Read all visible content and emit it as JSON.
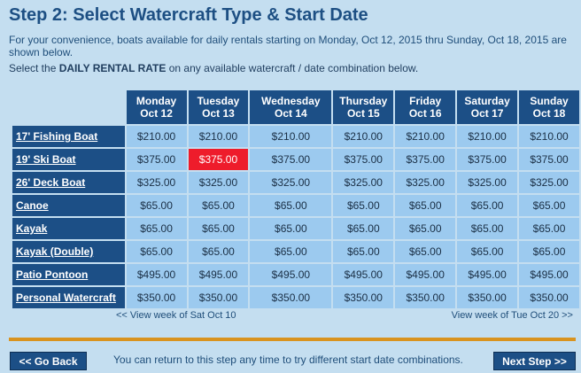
{
  "page": {
    "title": "Step 2: Select Watercraft Type & Start Date",
    "intro": "For your convenience, boats available for daily rentals starting on Monday, Oct 12, 2015 thru Sunday, Oct 18, 2015 are shown below.",
    "instruction_prefix": "Select the ",
    "instruction_bold": "DAILY RENTAL RATE",
    "instruction_suffix": " on any available watercraft / date combination below."
  },
  "table": {
    "days": [
      {
        "day": "Monday",
        "date": "Oct 12"
      },
      {
        "day": "Tuesday",
        "date": "Oct 13"
      },
      {
        "day": "Wednesday",
        "date": "Oct 14"
      },
      {
        "day": "Thursday",
        "date": "Oct 15"
      },
      {
        "day": "Friday",
        "date": "Oct 16"
      },
      {
        "day": "Saturday",
        "date": "Oct 17"
      },
      {
        "day": "Sunday",
        "date": "Oct 18"
      }
    ],
    "rows": [
      {
        "boat": "17' Fishing Boat",
        "rates": [
          "$210.00",
          "$210.00",
          "$210.00",
          "$210.00",
          "$210.00",
          "$210.00",
          "$210.00"
        ]
      },
      {
        "boat": "19' Ski Boat",
        "rates": [
          "$375.00",
          "$375.00",
          "$375.00",
          "$375.00",
          "$375.00",
          "$375.00",
          "$375.00"
        ]
      },
      {
        "boat": "26' Deck Boat",
        "rates": [
          "$325.00",
          "$325.00",
          "$325.00",
          "$325.00",
          "$325.00",
          "$325.00",
          "$325.00"
        ]
      },
      {
        "boat": "Canoe",
        "rates": [
          "$65.00",
          "$65.00",
          "$65.00",
          "$65.00",
          "$65.00",
          "$65.00",
          "$65.00"
        ]
      },
      {
        "boat": "Kayak",
        "rates": [
          "$65.00",
          "$65.00",
          "$65.00",
          "$65.00",
          "$65.00",
          "$65.00",
          "$65.00"
        ]
      },
      {
        "boat": "Kayak (Double)",
        "rates": [
          "$65.00",
          "$65.00",
          "$65.00",
          "$65.00",
          "$65.00",
          "$65.00",
          "$65.00"
        ]
      },
      {
        "boat": "Patio Pontoon",
        "rates": [
          "$495.00",
          "$495.00",
          "$495.00",
          "$495.00",
          "$495.00",
          "$495.00",
          "$495.00"
        ]
      },
      {
        "boat": "Personal Watercraft",
        "rates": [
          "$350.00",
          "$350.00",
          "$350.00",
          "$350.00",
          "$350.00",
          "$350.00",
          "$350.00"
        ]
      }
    ],
    "selected": {
      "row": 1,
      "col": 1
    }
  },
  "nav": {
    "prev_week": "<< View week of Sat Oct 10",
    "next_week": "View week of Tue Oct 20 >>"
  },
  "footer": {
    "back_label": "<< Go Back",
    "note": "You can return to this step any time to try different start date combinations.",
    "next_label": "Next Step >>"
  },
  "colors": {
    "header_bg": "#1c4f86",
    "cell_bg": "#9ccaef",
    "selected_bg": "#ee1c2b",
    "divider": "#d9931f",
    "page_bg": "#c4def0"
  }
}
